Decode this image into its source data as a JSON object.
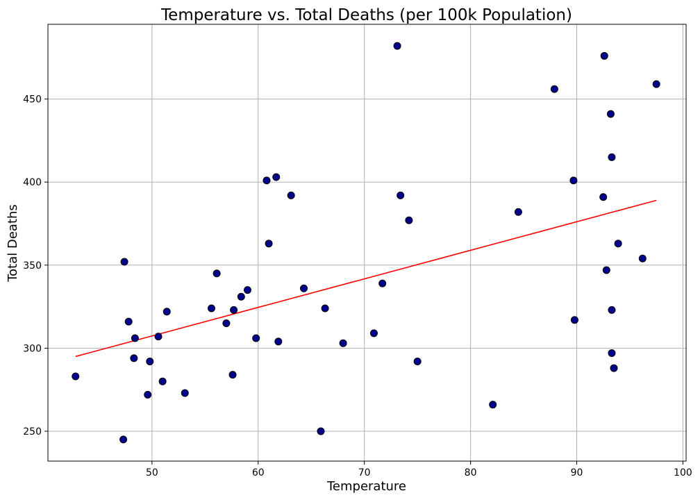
{
  "chart_data": {
    "type": "scatter",
    "title": "Temperature vs. Total Deaths (per 100k Population)",
    "xlabel": "Temperature",
    "ylabel": "Total Deaths",
    "xlim": [
      40.2,
      100.3
    ],
    "ylim": [
      232,
      495
    ],
    "xticks": [
      50,
      60,
      70,
      80,
      90,
      100
    ],
    "yticks": [
      250,
      300,
      350,
      400,
      450
    ],
    "grid": true,
    "colors": {
      "marker": "#00008b",
      "marker_edge": "#000000",
      "fit_line": "#ff0000"
    },
    "points": [
      {
        "x": 42.8,
        "y": 283
      },
      {
        "x": 47.3,
        "y": 245
      },
      {
        "x": 47.4,
        "y": 352
      },
      {
        "x": 47.8,
        "y": 316
      },
      {
        "x": 48.3,
        "y": 294
      },
      {
        "x": 48.4,
        "y": 306
      },
      {
        "x": 49.6,
        "y": 272
      },
      {
        "x": 49.8,
        "y": 292
      },
      {
        "x": 50.6,
        "y": 307
      },
      {
        "x": 51.0,
        "y": 280
      },
      {
        "x": 51.4,
        "y": 322
      },
      {
        "x": 53.1,
        "y": 273
      },
      {
        "x": 55.6,
        "y": 324
      },
      {
        "x": 56.1,
        "y": 345
      },
      {
        "x": 57.0,
        "y": 315
      },
      {
        "x": 57.6,
        "y": 284
      },
      {
        "x": 57.7,
        "y": 323
      },
      {
        "x": 58.4,
        "y": 331
      },
      {
        "x": 59.0,
        "y": 335
      },
      {
        "x": 59.8,
        "y": 306
      },
      {
        "x": 60.8,
        "y": 401
      },
      {
        "x": 61.0,
        "y": 363
      },
      {
        "x": 61.7,
        "y": 403
      },
      {
        "x": 61.9,
        "y": 304
      },
      {
        "x": 63.1,
        "y": 392
      },
      {
        "x": 64.3,
        "y": 336
      },
      {
        "x": 65.9,
        "y": 250
      },
      {
        "x": 66.3,
        "y": 324
      },
      {
        "x": 68.0,
        "y": 303
      },
      {
        "x": 70.9,
        "y": 309
      },
      {
        "x": 71.7,
        "y": 339
      },
      {
        "x": 73.1,
        "y": 482
      },
      {
        "x": 73.4,
        "y": 392
      },
      {
        "x": 74.2,
        "y": 377
      },
      {
        "x": 75.0,
        "y": 292
      },
      {
        "x": 82.1,
        "y": 266
      },
      {
        "x": 84.5,
        "y": 382
      },
      {
        "x": 87.9,
        "y": 456
      },
      {
        "x": 89.7,
        "y": 401
      },
      {
        "x": 89.8,
        "y": 317
      },
      {
        "x": 92.5,
        "y": 391
      },
      {
        "x": 92.6,
        "y": 476
      },
      {
        "x": 92.8,
        "y": 347
      },
      {
        "x": 93.2,
        "y": 441
      },
      {
        "x": 93.3,
        "y": 415
      },
      {
        "x": 93.3,
        "y": 323
      },
      {
        "x": 93.3,
        "y": 297
      },
      {
        "x": 93.5,
        "y": 288
      },
      {
        "x": 93.9,
        "y": 363
      },
      {
        "x": 96.2,
        "y": 354
      },
      {
        "x": 97.5,
        "y": 459
      }
    ],
    "regression": {
      "x": [
        42.8,
        97.5
      ],
      "y": [
        295,
        389
      ]
    }
  }
}
